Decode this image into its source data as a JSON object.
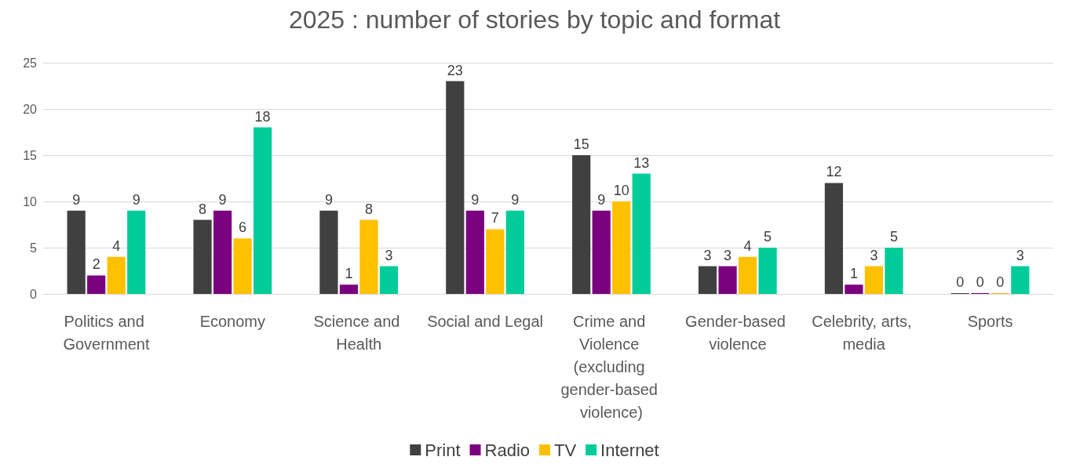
{
  "chart_data": {
    "type": "bar",
    "title": "2025 : number of stories by topic and format",
    "categories": [
      "Politics and Government",
      "Economy",
      "Science and Health",
      "Social and Legal",
      "Crime and Violence (excluding gender-based violence)",
      "Gender-based violence",
      "Celebrity, arts, media",
      "Sports"
    ],
    "series": [
      {
        "name": "Print",
        "color": "#404040",
        "values": [
          9,
          8,
          9,
          23,
          15,
          3,
          12,
          0
        ]
      },
      {
        "name": "Radio",
        "color": "#7b007f",
        "values": [
          2,
          9,
          1,
          9,
          9,
          3,
          1,
          0
        ]
      },
      {
        "name": "TV",
        "color": "#ffc000",
        "values": [
          4,
          6,
          8,
          7,
          10,
          4,
          3,
          0
        ]
      },
      {
        "name": "Internet",
        "color": "#00cc99",
        "values": [
          9,
          18,
          3,
          9,
          13,
          5,
          5,
          3
        ]
      }
    ],
    "ylim": [
      0,
      25
    ],
    "yticks": [
      0,
      5,
      10,
      15,
      20,
      25
    ],
    "grid": "y",
    "legend": "bottom",
    "data_labels": true
  }
}
